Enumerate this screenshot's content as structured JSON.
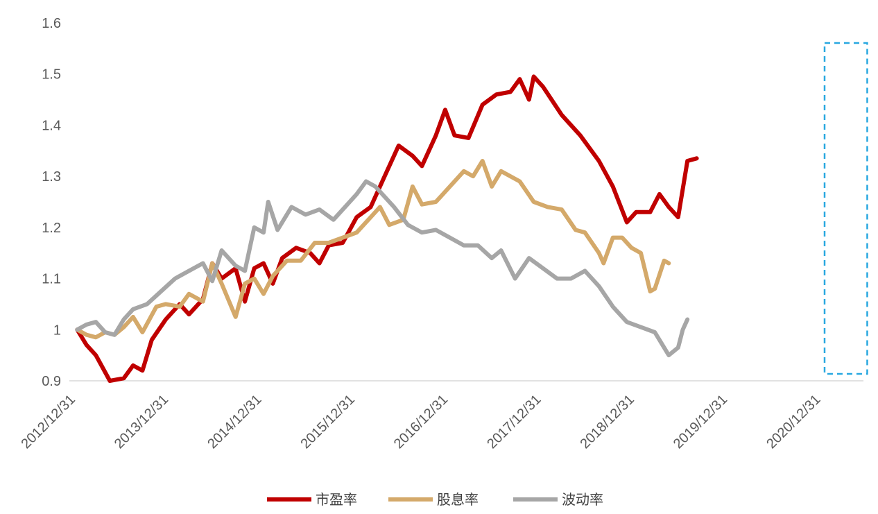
{
  "chart_data": {
    "type": "line",
    "title": "",
    "xlabel": "",
    "ylabel": "",
    "ylim": [
      0.9,
      1.6
    ],
    "yticks": [
      0.9,
      1,
      1.1,
      1.2,
      1.3,
      1.4,
      1.5,
      1.6
    ],
    "ytick_labels": [
      "0.9",
      "1",
      "1.1",
      "1.2",
      "1.3",
      "1.4",
      "1.5",
      "1.6"
    ],
    "xlim": [
      2012.99,
      2021.35
    ],
    "xticks": [
      2013.0,
      2014.0,
      2015.0,
      2016.0,
      2017.0,
      2018.0,
      2019.0,
      2020.0,
      2021.0
    ],
    "xtick_labels": [
      "2012/12/31",
      "2013/12/31",
      "2014/12/31",
      "2015/12/31",
      "2016/12/31",
      "2017/12/31",
      "2018/12/31",
      "2019/12/31",
      "2020/12/31"
    ],
    "grid": false,
    "legend": "bottom",
    "highlight_box": {
      "x_start": 2021.0,
      "x_end": 2021.48,
      "color": "#29A8E0"
    },
    "series": [
      {
        "name": "市盈率",
        "color": "#C00000",
        "points": [
          [
            2013.0,
            1.0
          ],
          [
            2013.1,
            0.97
          ],
          [
            2013.2,
            0.95
          ],
          [
            2013.35,
            0.9
          ],
          [
            2013.5,
            0.905
          ],
          [
            2013.6,
            0.93
          ],
          [
            2013.7,
            0.92
          ],
          [
            2013.8,
            0.98
          ],
          [
            2013.95,
            1.02
          ],
          [
            2014.1,
            1.05
          ],
          [
            2014.2,
            1.03
          ],
          [
            2014.35,
            1.06
          ],
          [
            2014.45,
            1.13
          ],
          [
            2014.55,
            1.1
          ],
          [
            2014.7,
            1.12
          ],
          [
            2014.8,
            1.055
          ],
          [
            2014.9,
            1.12
          ],
          [
            2015.0,
            1.13
          ],
          [
            2015.1,
            1.09
          ],
          [
            2015.2,
            1.14
          ],
          [
            2015.35,
            1.16
          ],
          [
            2015.5,
            1.15
          ],
          [
            2015.6,
            1.13
          ],
          [
            2015.7,
            1.165
          ],
          [
            2015.85,
            1.17
          ],
          [
            2016.0,
            1.22
          ],
          [
            2016.15,
            1.24
          ],
          [
            2016.3,
            1.3
          ],
          [
            2016.45,
            1.36
          ],
          [
            2016.6,
            1.34
          ],
          [
            2016.7,
            1.32
          ],
          [
            2016.85,
            1.38
          ],
          [
            2016.95,
            1.43
          ],
          [
            2017.05,
            1.38
          ],
          [
            2017.2,
            1.375
          ],
          [
            2017.35,
            1.44
          ],
          [
            2017.5,
            1.46
          ],
          [
            2017.65,
            1.465
          ],
          [
            2017.75,
            1.49
          ],
          [
            2017.85,
            1.45
          ],
          [
            2017.9,
            1.495
          ],
          [
            2018.0,
            1.475
          ],
          [
            2018.2,
            1.42
          ],
          [
            2018.4,
            1.38
          ],
          [
            2018.6,
            1.33
          ],
          [
            2018.75,
            1.28
          ],
          [
            2018.9,
            1.21
          ],
          [
            2019.0,
            1.23
          ],
          [
            2019.15,
            1.23
          ],
          [
            2019.25,
            1.265
          ],
          [
            2019.35,
            1.24
          ],
          [
            2019.45,
            1.22
          ],
          [
            2019.55,
            1.33
          ],
          [
            2019.65,
            1.335
          ]
        ]
      },
      {
        "name": "股息率",
        "color": "#D4A96A",
        "points": [
          [
            2013.0,
            1.0
          ],
          [
            2013.1,
            0.99
          ],
          [
            2013.2,
            0.985
          ],
          [
            2013.3,
            0.995
          ],
          [
            2013.4,
            0.99
          ],
          [
            2013.5,
            1.005
          ],
          [
            2013.6,
            1.025
          ],
          [
            2013.7,
            0.995
          ],
          [
            2013.85,
            1.045
          ],
          [
            2013.95,
            1.05
          ],
          [
            2014.1,
            1.045
          ],
          [
            2014.2,
            1.07
          ],
          [
            2014.35,
            1.055
          ],
          [
            2014.45,
            1.13
          ],
          [
            2014.55,
            1.09
          ],
          [
            2014.7,
            1.025
          ],
          [
            2014.8,
            1.09
          ],
          [
            2014.9,
            1.1
          ],
          [
            2015.0,
            1.07
          ],
          [
            2015.1,
            1.105
          ],
          [
            2015.25,
            1.135
          ],
          [
            2015.4,
            1.135
          ],
          [
            2015.55,
            1.17
          ],
          [
            2015.7,
            1.17
          ],
          [
            2015.85,
            1.18
          ],
          [
            2016.0,
            1.19
          ],
          [
            2016.15,
            1.22
          ],
          [
            2016.25,
            1.24
          ],
          [
            2016.35,
            1.205
          ],
          [
            2016.5,
            1.215
          ],
          [
            2016.6,
            1.28
          ],
          [
            2016.7,
            1.245
          ],
          [
            2016.85,
            1.25
          ],
          [
            2017.0,
            1.28
          ],
          [
            2017.15,
            1.31
          ],
          [
            2017.25,
            1.3
          ],
          [
            2017.35,
            1.33
          ],
          [
            2017.45,
            1.28
          ],
          [
            2017.55,
            1.31
          ],
          [
            2017.75,
            1.29
          ],
          [
            2017.9,
            1.25
          ],
          [
            2018.05,
            1.24
          ],
          [
            2018.2,
            1.235
          ],
          [
            2018.35,
            1.195
          ],
          [
            2018.45,
            1.19
          ],
          [
            2018.6,
            1.15
          ],
          [
            2018.65,
            1.13
          ],
          [
            2018.75,
            1.18
          ],
          [
            2018.85,
            1.18
          ],
          [
            2018.95,
            1.16
          ],
          [
            2019.05,
            1.15
          ],
          [
            2019.15,
            1.075
          ],
          [
            2019.2,
            1.08
          ],
          [
            2019.3,
            1.135
          ],
          [
            2019.35,
            1.13
          ]
        ]
      },
      {
        "name": "波动率",
        "color": "#A6A6A6",
        "points": [
          [
            2013.0,
            1.0
          ],
          [
            2013.1,
            1.01
          ],
          [
            2013.2,
            1.015
          ],
          [
            2013.3,
            0.995
          ],
          [
            2013.4,
            0.99
          ],
          [
            2013.5,
            1.02
          ],
          [
            2013.6,
            1.04
          ],
          [
            2013.75,
            1.05
          ],
          [
            2013.9,
            1.075
          ],
          [
            2014.05,
            1.1
          ],
          [
            2014.2,
            1.115
          ],
          [
            2014.35,
            1.13
          ],
          [
            2014.45,
            1.095
          ],
          [
            2014.55,
            1.155
          ],
          [
            2014.7,
            1.125
          ],
          [
            2014.8,
            1.115
          ],
          [
            2014.9,
            1.2
          ],
          [
            2015.0,
            1.19
          ],
          [
            2015.05,
            1.25
          ],
          [
            2015.15,
            1.195
          ],
          [
            2015.3,
            1.24
          ],
          [
            2015.45,
            1.225
          ],
          [
            2015.6,
            1.235
          ],
          [
            2015.75,
            1.215
          ],
          [
            2015.9,
            1.245
          ],
          [
            2016.0,
            1.265
          ],
          [
            2016.1,
            1.29
          ],
          [
            2016.2,
            1.28
          ],
          [
            2016.4,
            1.24
          ],
          [
            2016.55,
            1.205
          ],
          [
            2016.7,
            1.19
          ],
          [
            2016.85,
            1.195
          ],
          [
            2017.0,
            1.18
          ],
          [
            2017.15,
            1.165
          ],
          [
            2017.3,
            1.165
          ],
          [
            2017.45,
            1.14
          ],
          [
            2017.55,
            1.155
          ],
          [
            2017.7,
            1.1
          ],
          [
            2017.85,
            1.14
          ],
          [
            2018.0,
            1.12
          ],
          [
            2018.15,
            1.1
          ],
          [
            2018.3,
            1.1
          ],
          [
            2018.45,
            1.115
          ],
          [
            2018.6,
            1.085
          ],
          [
            2018.75,
            1.045
          ],
          [
            2018.9,
            1.015
          ],
          [
            2019.05,
            1.005
          ],
          [
            2019.2,
            0.995
          ],
          [
            2019.3,
            0.965
          ],
          [
            2019.35,
            0.95
          ],
          [
            2019.45,
            0.965
          ],
          [
            2019.5,
            1.0
          ],
          [
            2019.55,
            1.02
          ]
        ]
      }
    ]
  }
}
